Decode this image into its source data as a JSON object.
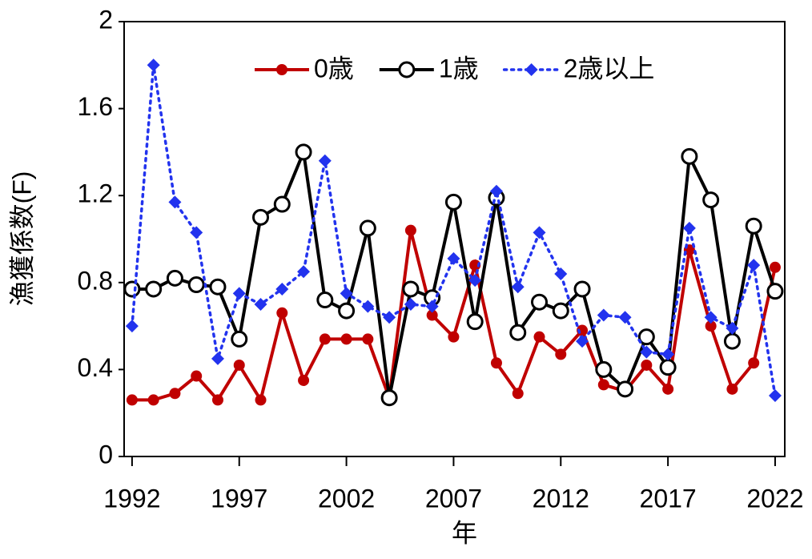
{
  "chart_data": {
    "type": "line",
    "x_label": "年",
    "y_label": "漁獲係数(F)",
    "x": [
      1992,
      1993,
      1994,
      1995,
      1996,
      1997,
      1998,
      1999,
      2000,
      2001,
      2002,
      2003,
      2004,
      2005,
      2006,
      2007,
      2008,
      2009,
      2010,
      2011,
      2012,
      2013,
      2014,
      2015,
      2016,
      2017,
      2018,
      2019,
      2020,
      2021,
      2022
    ],
    "series": [
      {
        "name": "0歳",
        "color": "#c00000",
        "marker": "circle-filled",
        "dash": "solid",
        "values": [
          0.26,
          0.26,
          0.29,
          0.37,
          0.26,
          0.42,
          0.26,
          0.66,
          0.35,
          0.54,
          0.54,
          0.54,
          0.27,
          1.04,
          0.65,
          0.55,
          0.88,
          0.43,
          0.29,
          0.55,
          0.47,
          0.58,
          0.33,
          0.3,
          0.42,
          0.31,
          0.95,
          0.6,
          0.31,
          0.43,
          0.87
        ]
      },
      {
        "name": "1歳",
        "color": "#000000",
        "marker": "circle-open",
        "dash": "solid",
        "values": [
          0.77,
          0.77,
          0.82,
          0.79,
          0.78,
          0.54,
          1.1,
          1.16,
          1.4,
          0.72,
          0.67,
          1.05,
          0.27,
          0.77,
          0.73,
          1.17,
          0.62,
          1.19,
          0.57,
          0.71,
          0.67,
          0.77,
          0.4,
          0.31,
          0.55,
          0.41,
          1.38,
          1.18,
          0.53,
          1.06,
          0.76
        ]
      },
      {
        "name": "2歳以上",
        "color": "#2233ee",
        "marker": "diamond",
        "dash": "dotted",
        "values": [
          0.6,
          1.8,
          1.17,
          1.03,
          0.45,
          0.75,
          0.7,
          0.77,
          0.85,
          1.36,
          0.75,
          0.69,
          0.64,
          0.7,
          0.69,
          0.91,
          0.81,
          1.22,
          0.78,
          1.03,
          0.84,
          0.53,
          0.65,
          0.64,
          0.48,
          0.47,
          1.05,
          0.64,
          0.59,
          0.88,
          0.28
        ]
      }
    ],
    "xlim": [
      1991.63,
      2022.45
    ],
    "xticks": [
      1992,
      1997,
      2002,
      2007,
      2012,
      2017,
      2022
    ],
    "ylim": [
      0,
      2
    ],
    "yticks": [
      0,
      0.4,
      0.8,
      1.2,
      1.6,
      2
    ],
    "grid": false,
    "legend": "top"
  }
}
